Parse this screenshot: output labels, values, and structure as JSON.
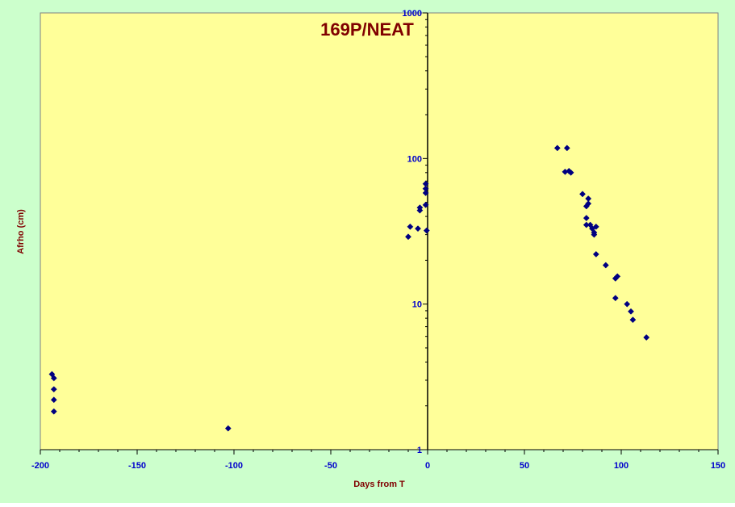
{
  "colors": {
    "outer_background": "#ccffcc",
    "plot_background": "#ffff99",
    "point_color": "#000080",
    "tick_label_color": "#0000cc",
    "title_color": "#800000"
  },
  "chart_data": {
    "type": "scatter",
    "title": "169P/NEAT",
    "xlabel": "Days from T",
    "ylabel": "Afrho (cm)",
    "xlim": [
      -200,
      150
    ],
    "ylim": [
      1,
      1000
    ],
    "y_scale": "log",
    "x_ticks": [
      -200,
      -150,
      -100,
      -50,
      0,
      50,
      100,
      150
    ],
    "x_tick_labels": [
      "-200",
      "-150",
      "-100",
      "-50",
      "0",
      "50",
      "100",
      "150"
    ],
    "y_ticks": [
      1,
      10,
      100,
      1000
    ],
    "y_tick_labels": [
      "1",
      "10",
      "100",
      "1000"
    ],
    "grid": false,
    "legend": "none",
    "marker": "diamond",
    "points": [
      {
        "x": -194,
        "y": 3.3
      },
      {
        "x": -193,
        "y": 3.1
      },
      {
        "x": -193,
        "y": 2.6
      },
      {
        "x": -193,
        "y": 2.2
      },
      {
        "x": -193,
        "y": 1.83
      },
      {
        "x": -103,
        "y": 1.4
      },
      {
        "x": -10,
        "y": 29
      },
      {
        "x": -9,
        "y": 34
      },
      {
        "x": -5,
        "y": 33
      },
      {
        "x": -4,
        "y": 44
      },
      {
        "x": -4,
        "y": 46
      },
      {
        "x": -1,
        "y": 48
      },
      {
        "x": -1,
        "y": 58
      },
      {
        "x": -1,
        "y": 62
      },
      {
        "x": -1,
        "y": 67
      },
      {
        "x": -0.5,
        "y": 32
      },
      {
        "x": 67,
        "y": 118
      },
      {
        "x": 71,
        "y": 81
      },
      {
        "x": 72,
        "y": 118
      },
      {
        "x": 73,
        "y": 82
      },
      {
        "x": 74,
        "y": 80
      },
      {
        "x": 80,
        "y": 57
      },
      {
        "x": 82,
        "y": 47
      },
      {
        "x": 82,
        "y": 39
      },
      {
        "x": 82,
        "y": 35
      },
      {
        "x": 83,
        "y": 53
      },
      {
        "x": 83,
        "y": 49
      },
      {
        "x": 84,
        "y": 35
      },
      {
        "x": 85,
        "y": 33
      },
      {
        "x": 86,
        "y": 31
      },
      {
        "x": 86,
        "y": 30
      },
      {
        "x": 87,
        "y": 34
      },
      {
        "x": 87,
        "y": 22
      },
      {
        "x": 92,
        "y": 18.5
      },
      {
        "x": 97,
        "y": 15
      },
      {
        "x": 97,
        "y": 11
      },
      {
        "x": 98,
        "y": 15.5
      },
      {
        "x": 103,
        "y": 10
      },
      {
        "x": 105,
        "y": 8.9
      },
      {
        "x": 106,
        "y": 7.8
      },
      {
        "x": 113,
        "y": 5.9
      }
    ]
  }
}
